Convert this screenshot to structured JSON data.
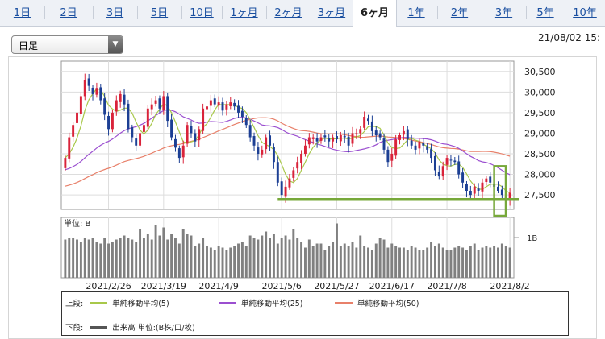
{
  "tabs": [
    {
      "label": "1日",
      "active": false
    },
    {
      "label": "2日",
      "active": false
    },
    {
      "label": "3日",
      "active": false
    },
    {
      "label": "5日",
      "active": false
    },
    {
      "label": "10日",
      "active": false
    },
    {
      "label": "1ヶ月",
      "active": false
    },
    {
      "label": "2ヶ月",
      "active": false
    },
    {
      "label": "3ヶ月",
      "active": false
    },
    {
      "label": "6ヶ月",
      "active": true
    },
    {
      "label": "1年",
      "active": false
    },
    {
      "label": "2年",
      "active": false
    },
    {
      "label": "3年",
      "active": false
    },
    {
      "label": "5年",
      "active": false
    },
    {
      "label": "10年",
      "active": false
    }
  ],
  "period_select": {
    "value": "日足",
    "icon": "triangle-down-icon"
  },
  "timestamp": "21/08/02 15:",
  "chart_data": {
    "type": "candlestick",
    "y_ticks": [
      "30,500",
      "30,000",
      "29,500",
      "29,000",
      "28,500",
      "28,000",
      "27,500"
    ],
    "y_tick_values": [
      30500,
      30000,
      29500,
      29000,
      28500,
      28000,
      27500
    ],
    "ylim": [
      27150,
      30750
    ],
    "x_ticks": [
      "2021/2/26",
      "2021/3/19",
      "2021/4/9",
      "2021/5/6",
      "2021/5/27",
      "2021/6/17",
      "2021/7/8",
      "2021/8/2"
    ],
    "x_tick_index": [
      11,
      25,
      39,
      55,
      69,
      83,
      97,
      113
    ],
    "volume_label": "単位: B",
    "volume_tick": "1B",
    "volume_ylim": [
      0,
      1.5
    ],
    "colors": {
      "up": "#d9233a",
      "down": "#1c3f94",
      "ma5": "#a8c84a",
      "ma25": "#9b4fd0",
      "ma50": "#e8806a",
      "volume": "#808080",
      "annotation": "#77a83a"
    },
    "closes": [
      28400,
      28900,
      29200,
      29500,
      29900,
      30300,
      30150,
      29950,
      30100,
      29800,
      29450,
      29100,
      29500,
      29800,
      29950,
      29700,
      29100,
      28900,
      28700,
      29000,
      29200,
      29600,
      29700,
      29800,
      29600,
      29900,
      29300,
      28900,
      28650,
      28400,
      28700,
      29200,
      29000,
      28800,
      29100,
      29600,
      29650,
      29800,
      29700,
      29750,
      29550,
      29700,
      29750,
      29650,
      29500,
      29400,
      29200,
      28900,
      28700,
      28500,
      28600,
      28900,
      28700,
      28300,
      27800,
      27500,
      27700,
      27900,
      28100,
      28300,
      28500,
      28700,
      28900,
      28900,
      28800,
      28900,
      28900,
      28800,
      28900,
      28850,
      28950,
      28900,
      28700,
      29000,
      29000,
      29100,
      29400,
      29300,
      29050,
      28950,
      28900,
      28600,
      28300,
      28500,
      28850,
      28950,
      29050,
      28850,
      28700,
      28600,
      28800,
      28700,
      28600,
      28400,
      28100,
      27950,
      28200,
      28400,
      28350,
      28300,
      28000,
      27800,
      27600,
      27500,
      27700,
      27600,
      27800,
      27900,
      27800,
      27700,
      27600,
      27500,
      27400,
      27550
    ],
    "volumes": [
      0.95,
      1.0,
      1.0,
      0.95,
      0.9,
      1.0,
      0.95,
      1.0,
      0.9,
      0.85,
      1.0,
      0.85,
      0.9,
      0.95,
      1.0,
      1.05,
      1.0,
      0.95,
      0.9,
      1.2,
      1.0,
      1.1,
      0.95,
      1.3,
      1.05,
      1.25,
      0.95,
      1.1,
      1.0,
      0.85,
      1.2,
      1.1,
      1.05,
      0.8,
      0.85,
      1.0,
      0.8,
      0.75,
      0.7,
      0.8,
      0.75,
      0.7,
      0.75,
      0.8,
      0.85,
      0.9,
      0.8,
      1.05,
      1.0,
      0.95,
      1.05,
      1.15,
      1.0,
      1.1,
      0.85,
      1.0,
      1.05,
      0.95,
      1.2,
      1.0,
      0.9,
      0.75,
      0.95,
      0.8,
      0.85,
      0.85,
      0.7,
      0.8,
      0.9,
      1.35,
      0.8,
      0.85,
      0.8,
      0.9,
      0.75,
      1.05,
      0.8,
      0.75,
      0.7,
      0.85,
      1.0,
      0.95,
      0.75,
      0.85,
      0.8,
      0.75,
      0.75,
      0.7,
      0.8,
      0.75,
      0.7,
      0.7,
      0.75,
      0.9,
      0.8,
      0.85,
      0.75,
      0.7,
      0.7,
      0.75,
      0.8,
      0.75,
      0.7,
      0.8,
      0.85,
      0.7,
      0.75,
      0.8,
      0.75,
      0.8,
      0.75,
      0.85,
      0.8,
      0.75
    ],
    "annotations": {
      "support_line_value": 27400,
      "box_range": {
        "x_index": [
          111,
          128
        ],
        "y": [
          27150,
          28200
        ]
      }
    }
  },
  "legend": {
    "upper_label": "上段:",
    "lower_label": "下段:",
    "ma5": "単純移動平均(5)",
    "ma25": "単純移動平均(25)",
    "ma50": "単純移動平均(50)",
    "volume": "出来高 単位:(B株/口/枚)"
  }
}
